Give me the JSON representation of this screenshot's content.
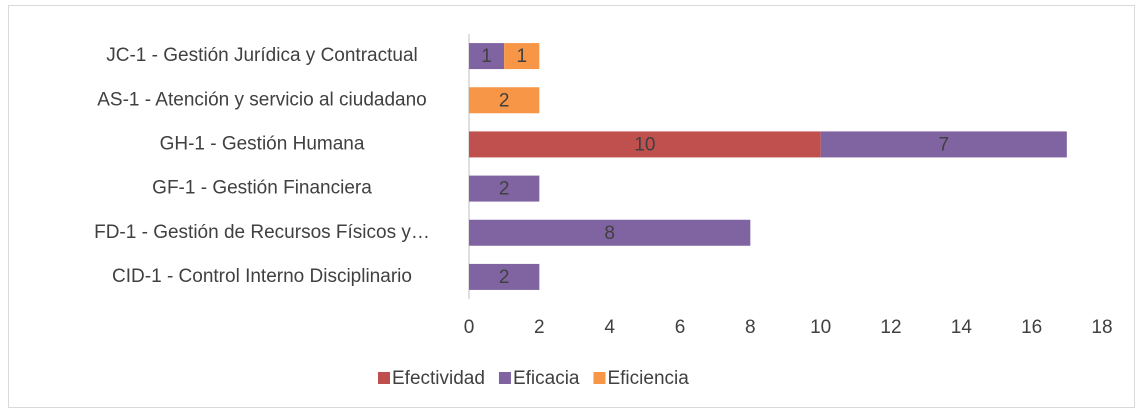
{
  "chart_data": {
    "type": "bar",
    "orientation": "horizontal",
    "stacked": true,
    "categories": [
      "JC-1 - Gestión Jurídica y Contractual",
      "AS-1 - Atención y servicio al ciudadano",
      "GH-1 - Gestión Humana",
      "GF-1 - Gestión Financiera",
      "FD-1 - Gestión de Recursos Físicos y…",
      "CID-1 - Control Interno Disciplinario"
    ],
    "series": [
      {
        "name": "Efectividad",
        "color": "#c0504d",
        "values": [
          null,
          null,
          10,
          null,
          null,
          null
        ]
      },
      {
        "name": "Eficacia",
        "color": "#8064a2",
        "values": [
          1,
          null,
          7,
          2,
          8,
          2
        ]
      },
      {
        "name": "Eficiencia",
        "color": "#f79646",
        "values": [
          1,
          2,
          null,
          null,
          null,
          null
        ]
      }
    ],
    "xlim": [
      0,
      18
    ],
    "xticks": [
      0,
      2,
      4,
      6,
      8,
      10,
      12,
      14,
      16,
      18
    ],
    "grid": false,
    "legend": "bottom"
  }
}
